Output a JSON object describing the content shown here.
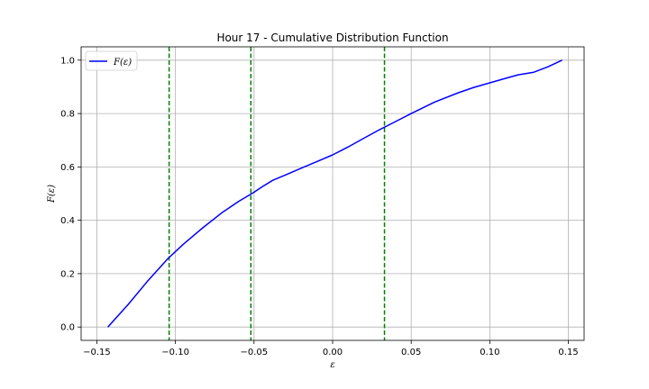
{
  "chart_data": {
    "type": "line",
    "title": "Hour 17 - Cumulative Distribution Function",
    "xlabel": "ε",
    "ylabel": "F(ε)",
    "xlim": [
      -0.16,
      0.16
    ],
    "ylim": [
      -0.05,
      1.05
    ],
    "xticks": [
      -0.15,
      -0.1,
      -0.05,
      0.0,
      0.05,
      0.1,
      0.15
    ],
    "xtick_labels": [
      "−0.15",
      "−0.10",
      "−0.05",
      "0.00",
      "0.05",
      "0.10",
      "0.15"
    ],
    "yticks": [
      0.0,
      0.2,
      0.4,
      0.6,
      0.8,
      1.0
    ],
    "ytick_labels": [
      "0.0",
      "0.2",
      "0.4",
      "0.6",
      "0.8",
      "1.0"
    ],
    "grid": true,
    "legend": {
      "placement": "top-left",
      "entries": [
        "F(ε)"
      ]
    },
    "series": [
      {
        "name": "F(ε)",
        "color": "#0000ff",
        "x": [
          -0.143,
          -0.13,
          -0.118,
          -0.105,
          -0.095,
          -0.083,
          -0.07,
          -0.06,
          -0.05,
          -0.045,
          -0.038,
          -0.03,
          -0.02,
          -0.01,
          0.0,
          0.01,
          0.02,
          0.03,
          0.04,
          0.05,
          0.065,
          0.08,
          0.09,
          0.1,
          0.11,
          0.118,
          0.128,
          0.137,
          0.146
        ],
        "y": [
          0.0,
          0.085,
          0.17,
          0.255,
          0.31,
          0.37,
          0.43,
          0.47,
          0.505,
          0.525,
          0.55,
          0.57,
          0.595,
          0.62,
          0.645,
          0.675,
          0.708,
          0.74,
          0.77,
          0.8,
          0.843,
          0.878,
          0.898,
          0.915,
          0.932,
          0.945,
          0.955,
          0.975,
          1.0
        ]
      }
    ],
    "vlines": [
      {
        "x": -0.104,
        "color": "#008000",
        "style": "dashed"
      },
      {
        "x": -0.052,
        "color": "#008000",
        "style": "dashed"
      },
      {
        "x": 0.033,
        "color": "#008000",
        "style": "dashed"
      }
    ]
  }
}
